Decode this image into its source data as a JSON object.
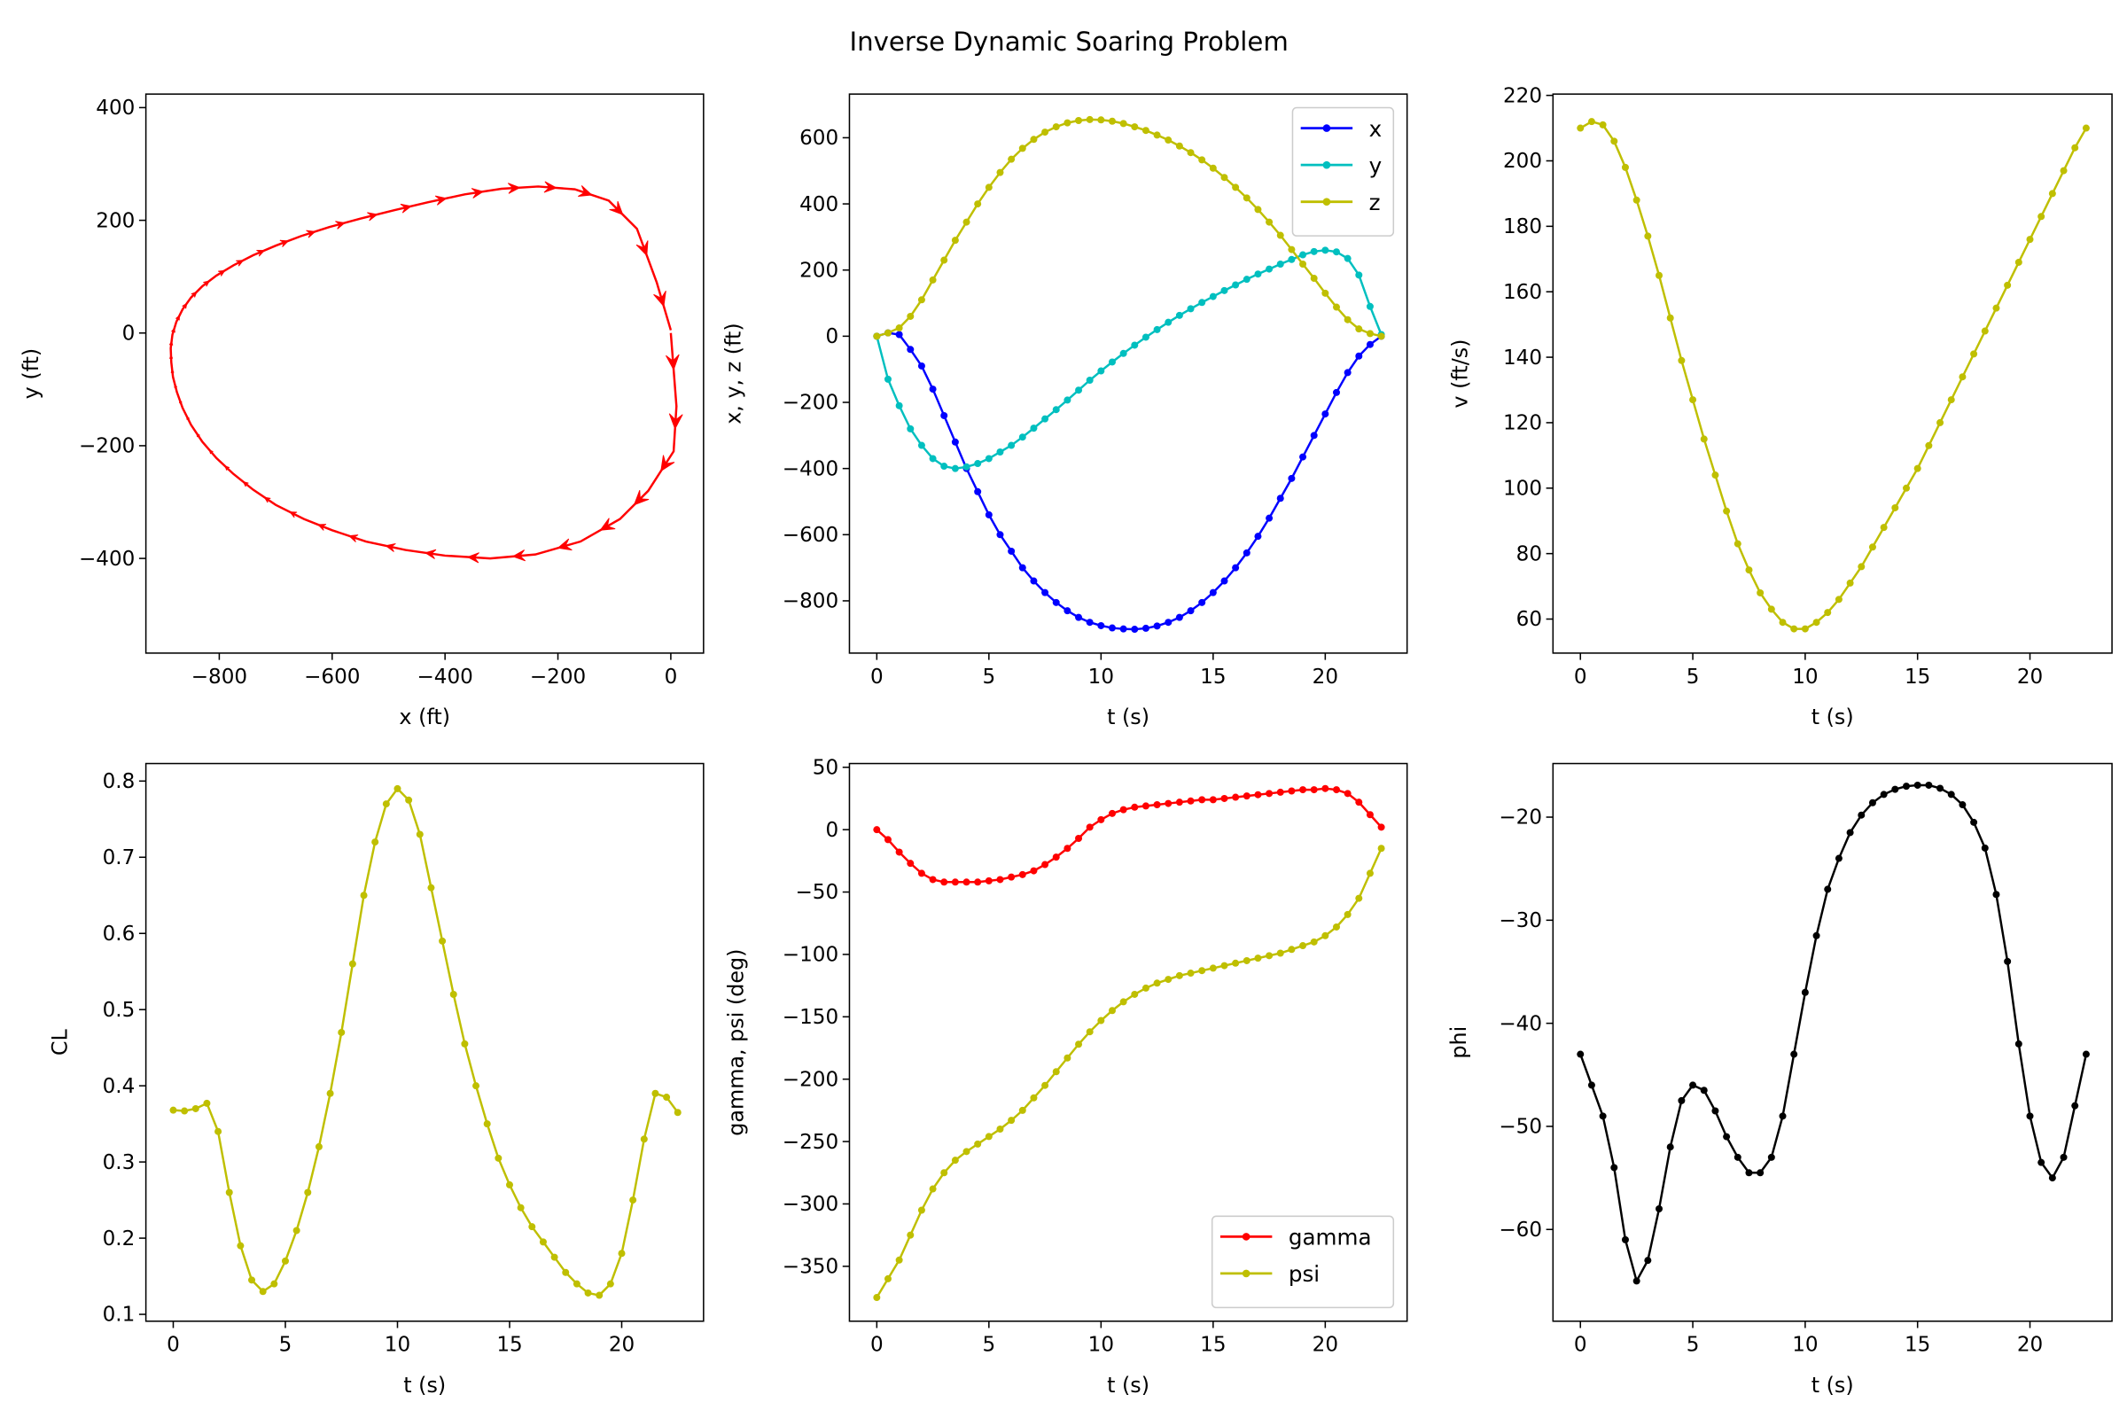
{
  "title": "Inverse Dynamic Soaring Problem",
  "chart_data": [
    {
      "type": "line",
      "xlabel": "x (ft)",
      "ylabel": "y (ft)",
      "xlim": [
        -930,
        58
      ],
      "ylim": [
        -568,
        424
      ],
      "xticks": [
        -800,
        -600,
        -400,
        -200,
        0
      ],
      "xticklabels": [
        "−800",
        "−600",
        "−400",
        "−200",
        "0"
      ],
      "yticks": [
        400,
        200,
        0,
        -200,
        -400
      ],
      "yticklabels": [
        "400",
        "200",
        "0",
        "−200",
        "−400"
      ],
      "grid": false,
      "marker": "arrow",
      "color": "#ff0000",
      "x": [
        0,
        10,
        5,
        -40,
        -90,
        -160,
        -240,
        -320,
        -400,
        -470,
        -540,
        -600,
        -650,
        -700,
        -740,
        -775,
        -805,
        -830,
        -850,
        -865,
        -875,
        -882,
        -885,
        -886,
        -883,
        -876,
        -865,
        -850,
        -830,
        -805,
        -775,
        -740,
        -700,
        -655,
        -605,
        -550,
        -490,
        -430,
        -365,
        -300,
        -235,
        -170,
        -110,
        -60,
        -25,
        0
      ],
      "y": [
        0,
        -130,
        -210,
        -280,
        -330,
        -370,
        -393,
        -400,
        -395,
        -385,
        -370,
        -350,
        -330,
        -305,
        -278,
        -250,
        -222,
        -193,
        -163,
        -133,
        -105,
        -78,
        -52,
        -27,
        -3,
        20,
        42,
        63,
        83,
        102,
        120,
        138,
        155,
        172,
        188,
        203,
        218,
        232,
        246,
        256,
        260,
        255,
        235,
        185,
        90,
        5
      ],
      "arrow_scale_by": "speed"
    },
    {
      "type": "line",
      "xlabel": "t (s)",
      "ylabel": "x, y, z (ft)",
      "xlim": [
        -1.22,
        23.65
      ],
      "ylim": [
        -958,
        732
      ],
      "xticks": [
        0,
        5,
        10,
        15,
        20
      ],
      "xticklabels": [
        "0",
        "5",
        "10",
        "15",
        "20"
      ],
      "yticks": [
        600,
        400,
        200,
        0,
        -200,
        -400,
        -600,
        -800
      ],
      "yticklabels": [
        "600",
        "400",
        "200",
        "0",
        "−200",
        "−400",
        "−600",
        "−800"
      ],
      "grid": false,
      "legend": "top-right",
      "x": [
        0,
        0.5,
        1,
        1.5,
        2,
        2.5,
        3,
        3.5,
        4,
        4.5,
        5,
        5.5,
        6,
        6.5,
        7,
        7.5,
        8,
        8.5,
        9,
        9.5,
        10,
        10.5,
        11,
        11.5,
        12,
        12.5,
        13,
        13.5,
        14,
        14.5,
        15,
        15.5,
        16,
        16.5,
        17,
        17.5,
        18,
        18.5,
        19,
        19.5,
        20,
        20.5,
        21,
        21.5,
        22,
        22.5
      ],
      "series": [
        {
          "name": "x",
          "color": "#0000ff",
          "values": [
            0,
            10,
            5,
            -40,
            -90,
            -160,
            -240,
            -320,
            -400,
            -470,
            -540,
            -600,
            -650,
            -700,
            -740,
            -775,
            -805,
            -830,
            -850,
            -865,
            -875,
            -882,
            -885,
            -886,
            -883,
            -876,
            -865,
            -850,
            -830,
            -805,
            -775,
            -740,
            -700,
            -655,
            -605,
            -550,
            -490,
            -430,
            -365,
            -300,
            -235,
            -170,
            -110,
            -60,
            -25,
            0
          ]
        },
        {
          "name": "y",
          "color": "#00bfbf",
          "values": [
            0,
            -130,
            -210,
            -280,
            -330,
            -370,
            -393,
            -400,
            -395,
            -385,
            -370,
            -350,
            -330,
            -305,
            -278,
            -250,
            -222,
            -193,
            -163,
            -133,
            -105,
            -78,
            -52,
            -27,
            -3,
            20,
            42,
            63,
            83,
            102,
            120,
            138,
            155,
            172,
            188,
            203,
            218,
            232,
            246,
            256,
            260,
            255,
            235,
            185,
            90,
            5
          ]
        },
        {
          "name": "z",
          "color": "#bfbf00",
          "values": [
            0,
            10,
            25,
            60,
            110,
            170,
            230,
            290,
            345,
            400,
            450,
            495,
            535,
            568,
            595,
            617,
            633,
            645,
            652,
            655,
            654,
            650,
            643,
            633,
            622,
            608,
            593,
            575,
            555,
            533,
            508,
            480,
            450,
            418,
            383,
            345,
            305,
            262,
            218,
            175,
            130,
            88,
            50,
            22,
            8,
            0
          ]
        }
      ]
    },
    {
      "type": "line",
      "xlabel": "t (s)",
      "ylabel": "v (ft/s)",
      "xlim": [
        -1.22,
        23.65
      ],
      "ylim": [
        49.6,
        220.4
      ],
      "xticks": [
        0,
        5,
        10,
        15,
        20
      ],
      "xticklabels": [
        "0",
        "5",
        "10",
        "15",
        "20"
      ],
      "yticks": [
        60,
        80,
        100,
        120,
        140,
        160,
        180,
        200,
        220
      ],
      "yticklabels": [
        "60",
        "80",
        "100",
        "120",
        "140",
        "160",
        "180",
        "200",
        "220"
      ],
      "grid": false,
      "x": [
        0,
        0.5,
        1,
        1.5,
        2,
        2.5,
        3,
        3.5,
        4,
        4.5,
        5,
        5.5,
        6,
        6.5,
        7,
        7.5,
        8,
        8.5,
        9,
        9.5,
        10,
        10.5,
        11,
        11.5,
        12,
        12.5,
        13,
        13.5,
        14,
        14.5,
        15,
        15.5,
        16,
        16.5,
        17,
        17.5,
        18,
        18.5,
        19,
        19.5,
        20,
        20.5,
        21,
        21.5,
        22,
        22.5
      ],
      "series": [
        {
          "color": "#bfbf00",
          "values": [
            210,
            212,
            211,
            206,
            198,
            188,
            177,
            165,
            152,
            139,
            127,
            115,
            104,
            93,
            83,
            75,
            68,
            63,
            59,
            57,
            57,
            59,
            62,
            66,
            71,
            76,
            82,
            88,
            94,
            100,
            106,
            113,
            120,
            127,
            134,
            141,
            148,
            155,
            162,
            169,
            176,
            183,
            190,
            197,
            204,
            210
          ]
        }
      ]
    },
    {
      "type": "line",
      "xlabel": "t (s)",
      "ylabel": "CL",
      "xlim": [
        -1.22,
        23.65
      ],
      "ylim": [
        0.091,
        0.823
      ],
      "xticks": [
        0,
        5,
        10,
        15,
        20
      ],
      "xticklabels": [
        "0",
        "5",
        "10",
        "15",
        "20"
      ],
      "yticks": [
        0.1,
        0.2,
        0.3,
        0.4,
        0.5,
        0.6,
        0.7,
        0.8
      ],
      "yticklabels": [
        "0.1",
        "0.2",
        "0.3",
        "0.4",
        "0.5",
        "0.6",
        "0.7",
        "0.8"
      ],
      "grid": false,
      "x": [
        0,
        0.5,
        1,
        1.5,
        2,
        2.5,
        3,
        3.5,
        4,
        4.5,
        5,
        5.5,
        6,
        6.5,
        7,
        7.5,
        8,
        8.5,
        9,
        9.5,
        10,
        10.5,
        11,
        11.5,
        12,
        12.5,
        13,
        13.5,
        14,
        14.5,
        15,
        15.5,
        16,
        16.5,
        17,
        17.5,
        18,
        18.5,
        19,
        19.5,
        20,
        20.5,
        21,
        21.5,
        22,
        22.5
      ],
      "series": [
        {
          "color": "#bfbf00",
          "values": [
            0.368,
            0.367,
            0.37,
            0.377,
            0.34,
            0.26,
            0.19,
            0.145,
            0.13,
            0.14,
            0.17,
            0.21,
            0.26,
            0.32,
            0.39,
            0.47,
            0.56,
            0.65,
            0.72,
            0.77,
            0.79,
            0.775,
            0.73,
            0.66,
            0.59,
            0.52,
            0.455,
            0.4,
            0.35,
            0.305,
            0.27,
            0.24,
            0.215,
            0.195,
            0.175,
            0.155,
            0.14,
            0.128,
            0.125,
            0.14,
            0.18,
            0.25,
            0.33,
            0.39,
            0.385,
            0.365
          ]
        }
      ]
    },
    {
      "type": "line",
      "xlabel": "t (s)",
      "ylabel": "gamma, psi (deg)",
      "xlim": [
        -1.22,
        23.65
      ],
      "ylim": [
        -394,
        53
      ],
      "xticks": [
        0,
        5,
        10,
        15,
        20
      ],
      "xticklabels": [
        "0",
        "5",
        "10",
        "15",
        "20"
      ],
      "yticks": [
        50,
        0,
        -50,
        -100,
        -150,
        -200,
        -250,
        -300,
        -350
      ],
      "yticklabels": [
        "50",
        "0",
        "−50",
        "−100",
        "−150",
        "−200",
        "−250",
        "−300",
        "−350"
      ],
      "grid": false,
      "legend": "bottom-right",
      "x": [
        0,
        0.5,
        1,
        1.5,
        2,
        2.5,
        3,
        3.5,
        4,
        4.5,
        5,
        5.5,
        6,
        6.5,
        7,
        7.5,
        8,
        8.5,
        9,
        9.5,
        10,
        10.5,
        11,
        11.5,
        12,
        12.5,
        13,
        13.5,
        14,
        14.5,
        15,
        15.5,
        16,
        16.5,
        17,
        17.5,
        18,
        18.5,
        19,
        19.5,
        20,
        20.5,
        21,
        21.5,
        22,
        22.5
      ],
      "series": [
        {
          "name": "gamma",
          "color": "#ff0000",
          "values": [
            0,
            -8,
            -18,
            -27,
            -35,
            -40,
            -42,
            -42,
            -42,
            -42,
            -41,
            -40,
            -38,
            -36,
            -33,
            -28,
            -22,
            -15,
            -7,
            2,
            8,
            13,
            16,
            18,
            19,
            20,
            21,
            22,
            23,
            24,
            24,
            25,
            26,
            27,
            28,
            29,
            30,
            31,
            32,
            32,
            33,
            32,
            29,
            22,
            12,
            2
          ]
        },
        {
          "name": "psi",
          "color": "#bfbf00",
          "values": [
            -375,
            -360,
            -345,
            -325,
            -305,
            -288,
            -275,
            -265,
            -258,
            -252,
            -246,
            -240,
            -233,
            -225,
            -215,
            -205,
            -194,
            -183,
            -172,
            -162,
            -153,
            -145,
            -138,
            -132,
            -127,
            -123,
            -120,
            -117,
            -115,
            -113,
            -111,
            -109,
            -107,
            -105,
            -103,
            -101,
            -99,
            -96,
            -93,
            -90,
            -85,
            -78,
            -68,
            -55,
            -35,
            -15
          ]
        }
      ]
    },
    {
      "type": "line",
      "xlabel": "t (s)",
      "ylabel": "phi",
      "xlim": [
        -1.22,
        23.65
      ],
      "ylim": [
        -68.9,
        -14.8
      ],
      "xticks": [
        0,
        5,
        10,
        15,
        20
      ],
      "xticklabels": [
        "0",
        "5",
        "10",
        "15",
        "20"
      ],
      "yticks": [
        -20,
        -30,
        -40,
        -50,
        -60
      ],
      "yticklabels": [
        "−20",
        "−30",
        "−40",
        "−50",
        "−60"
      ],
      "grid": false,
      "x": [
        0,
        0.5,
        1,
        1.5,
        2,
        2.5,
        3,
        3.5,
        4,
        4.5,
        5,
        5.5,
        6,
        6.5,
        7,
        7.5,
        8,
        8.5,
        9,
        9.5,
        10,
        10.5,
        11,
        11.5,
        12,
        12.5,
        13,
        13.5,
        14,
        14.5,
        15,
        15.5,
        16,
        16.5,
        17,
        17.5,
        18,
        18.5,
        19,
        19.5,
        20,
        20.5,
        21,
        21.5,
        22,
        22.5
      ],
      "series": [
        {
          "color": "#000000",
          "values": [
            -43,
            -46,
            -49,
            -54,
            -61,
            -65,
            -63,
            -58,
            -52,
            -47.5,
            -46,
            -46.5,
            -48.5,
            -51,
            -53,
            -54.5,
            -54.5,
            -53,
            -49,
            -43,
            -37,
            -31.5,
            -27,
            -24,
            -21.5,
            -19.8,
            -18.6,
            -17.8,
            -17.3,
            -17,
            -16.9,
            -16.9,
            -17.2,
            -17.8,
            -18.8,
            -20.5,
            -23,
            -27.5,
            -34,
            -42,
            -49,
            -53.5,
            -55,
            -53,
            -48,
            -43
          ]
        }
      ]
    }
  ]
}
